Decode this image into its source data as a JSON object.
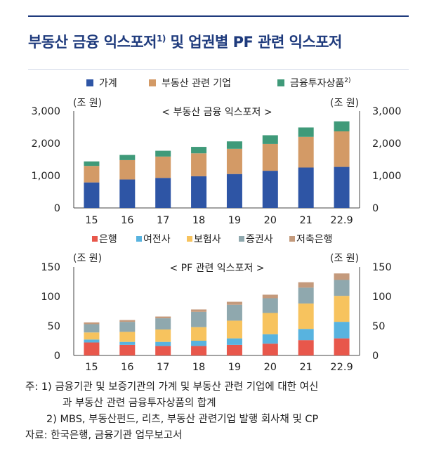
{
  "title": "부동산 금융 익스포저",
  "title_sup": "1)",
  "title_tail": " 및 업권별 PF 관련 익스포저",
  "chart_data": [
    {
      "type": "bar",
      "stacked": true,
      "subtitle": "< 부동산 금융 익스포저 >",
      "unit_left": "(조 원)",
      "unit_right": "(조 원)",
      "categories": [
        "15",
        "16",
        "17",
        "18",
        "19",
        "20",
        "21",
        "22.9"
      ],
      "ylim": [
        0,
        3000
      ],
      "yticks": [
        "0",
        "1,000",
        "2,000",
        "3,000"
      ],
      "legend_position": "top",
      "series": [
        {
          "name": "가계",
          "color": "#2e55a5",
          "values": [
            790,
            880,
            930,
            980,
            1050,
            1150,
            1250,
            1270
          ]
        },
        {
          "name": "부동산 관련 기업",
          "color": "#d39a66",
          "values": [
            510,
            600,
            660,
            710,
            780,
            830,
            950,
            1100
          ]
        },
        {
          "name": "금융투자상품",
          "legend_sup": "2)",
          "color": "#3f9a79",
          "values": [
            140,
            160,
            180,
            200,
            230,
            270,
            290,
            310
          ]
        }
      ]
    },
    {
      "type": "bar",
      "stacked": true,
      "subtitle": "< PF 관련 익스포저 >",
      "unit_left": "(조 원)",
      "unit_right": "(조 원)",
      "categories": [
        "15",
        "16",
        "17",
        "18",
        "19",
        "20",
        "21",
        "22.9"
      ],
      "ylim": [
        0,
        150
      ],
      "yticks": [
        "0",
        "50",
        "100",
        "150"
      ],
      "legend_position": "top",
      "series": [
        {
          "name": "은행",
          "color": "#e8574b",
          "values": [
            22,
            18,
            16,
            16,
            18,
            20,
            26,
            29
          ]
        },
        {
          "name": "여전사",
          "color": "#58b3df",
          "values": [
            5,
            5,
            7,
            9,
            11,
            16,
            19,
            28
          ]
        },
        {
          "name": "보험사",
          "color": "#f7c35e",
          "values": [
            12,
            17,
            21,
            23,
            30,
            36,
            43,
            44
          ]
        },
        {
          "name": "증권사",
          "color": "#8fa8ae",
          "values": [
            14,
            17,
            19,
            26,
            27,
            25,
            27,
            27
          ]
        },
        {
          "name": "저축은행",
          "color": "#c49a7c",
          "values": [
            3,
            3,
            3,
            4,
            5,
            6,
            9,
            11
          ]
        }
      ]
    }
  ],
  "notes": [
    "주: 1) 금융기관 및 보증기관의 가계 및 부동산 관련 기업에 대한 여신",
    "과 부동산 관련 금융투자상품의 합계",
    "2) MBS, 부동산펀드, 리츠, 부동산 관련기업 발행 회사채 및 CP",
    "자료: 한국은행, 금융기관 업무보고서"
  ]
}
